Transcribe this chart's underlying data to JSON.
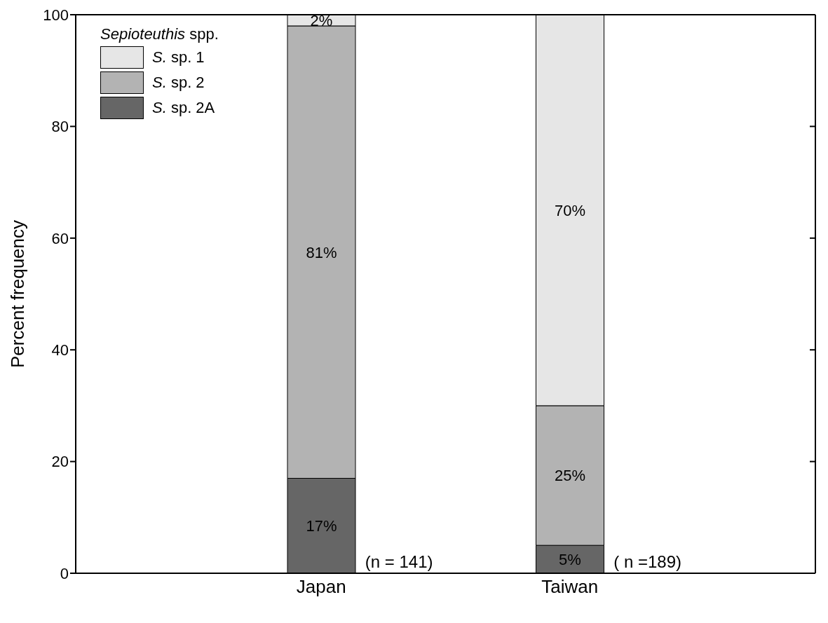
{
  "chart_data": {
    "type": "bar",
    "stacked": true,
    "ylabel": "Percent frequency",
    "legend_title": "Sepioteuthis spp.",
    "legend": "top left",
    "categories": [
      "Japan",
      "Taiwan"
    ],
    "series": [
      {
        "name": "S. sp. 2A",
        "color": "#666666",
        "values": [
          17,
          5
        ],
        "value_labels": [
          "17%",
          "5%"
        ]
      },
      {
        "name": "S. sp. 2",
        "color": "#b3b3b3",
        "values": [
          81,
          25
        ],
        "value_labels": [
          "81%",
          "25%"
        ]
      },
      {
        "name": "S. sp. 1",
        "color": "#e6e6e6",
        "values": [
          2,
          70
        ],
        "value_labels": [
          "2%",
          "70%"
        ]
      }
    ],
    "ylim": [
      0,
      100
    ],
    "yticks": [
      0,
      20,
      40,
      60,
      80,
      100
    ],
    "annotations": [
      {
        "text": "(n = 141)",
        "x": "Japan",
        "y": 0
      },
      {
        "text": "( n =189)",
        "x": "Taiwan",
        "y": 0
      }
    ]
  }
}
